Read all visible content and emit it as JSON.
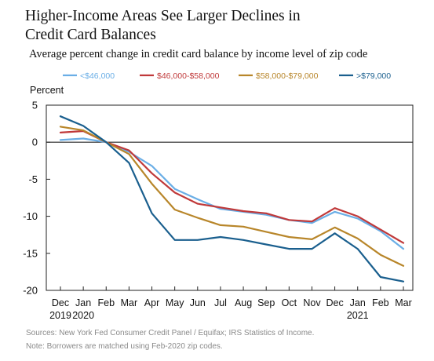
{
  "chart_data": {
    "type": "line",
    "title_lines": [
      "Higher-Income Areas See Larger Declines in",
      "Credit Card Balances"
    ],
    "subtitle": "Average percent change in credit card balance by income level of zip code",
    "ylabel": "Percent",
    "ylim": [
      -20,
      5
    ],
    "yticks": [
      5,
      0,
      -5,
      -10,
      -15,
      -20
    ],
    "tick_labels": {
      "5": "5",
      "0": "0",
      "-5": "-5",
      "-10": "-10",
      "-15": "-15",
      "-20": "-20"
    },
    "x": [
      "Dec 2019",
      "Jan 2020",
      "Feb",
      "Mar",
      "Apr",
      "May",
      "Jun",
      "Jul",
      "Aug",
      "Sep",
      "Oct",
      "Nov",
      "Dec",
      "Jan 2021",
      "Feb",
      "Mar"
    ],
    "x_tick_labels": [
      [
        "Dec",
        "2019"
      ],
      [
        "Jan",
        "2020"
      ],
      [
        "Feb"
      ],
      [
        "Mar"
      ],
      [
        "Apr"
      ],
      [
        "May"
      ],
      [
        "Jun"
      ],
      [
        "Jul"
      ],
      [
        "Aug"
      ],
      [
        "Sep"
      ],
      [
        "Oct"
      ],
      [
        "Nov"
      ],
      [
        "Dec"
      ],
      [
        "Jan",
        "2021"
      ],
      [
        "Feb"
      ],
      [
        "Mar"
      ]
    ],
    "zero_line": true,
    "grid": false,
    "legend_position": "top",
    "series": [
      {
        "name": "<$46,000",
        "color": "#6aaee6",
        "values": [
          0.3,
          0.5,
          0.0,
          -1.3,
          -3.2,
          -6.3,
          -7.7,
          -9.0,
          -9.4,
          -9.8,
          -10.5,
          -10.9,
          -9.4,
          -10.3,
          -12.0,
          -14.4
        ]
      },
      {
        "name": "$46,000-$58,000",
        "color": "#c0393a",
        "values": [
          1.3,
          1.5,
          0.0,
          -1.1,
          -4.2,
          -6.8,
          -8.3,
          -8.8,
          -9.3,
          -9.6,
          -10.5,
          -10.7,
          -8.9,
          -10.0,
          -11.8,
          -13.6
        ]
      },
      {
        "name": "$58,000-$79,000",
        "color": "#b8862a",
        "values": [
          2.1,
          1.6,
          0.0,
          -1.6,
          -5.6,
          -9.1,
          -10.2,
          -11.2,
          -11.4,
          -12.1,
          -12.8,
          -13.1,
          -11.5,
          -13.0,
          -15.2,
          -16.7
        ]
      },
      {
        "name": ">$79,000",
        "color": "#1a5f8e",
        "values": [
          3.5,
          2.2,
          0.0,
          -2.8,
          -9.6,
          -13.2,
          -13.2,
          -12.8,
          -13.2,
          -13.8,
          -14.4,
          -14.4,
          -12.3,
          -14.4,
          -18.2,
          -18.8
        ]
      }
    ]
  },
  "footer": {
    "source": "Sources: New York Fed Consumer Credit Panel / Equifax; IRS Statistics of Income.",
    "note": "Note: Borrowers are matched using Feb-2020 zip codes."
  }
}
